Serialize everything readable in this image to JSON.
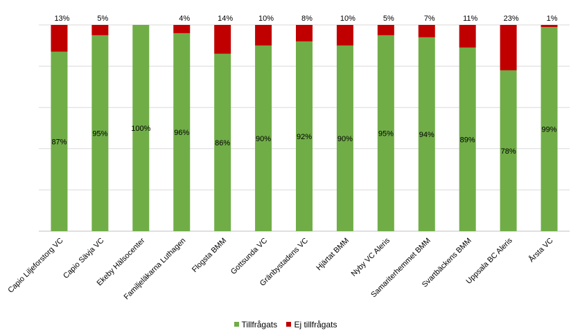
{
  "chart_data": {
    "type": "bar",
    "stacked": true,
    "categories": [
      "Capio Liljeforstorg VC",
      "Capio Sävja VC",
      "Ekeby Hälsocenter",
      "Familjeläkarna Luthagen",
      "Flogsta BMM",
      "Gottsunda  VC",
      "Gränbystadens VC",
      "Hjärtat BMM",
      "Nyby VC Aleris",
      "Samariterhemmet BMM",
      "Svartbäckens BMM",
      "Uppsala BC Aleris",
      "Årsta VC"
    ],
    "series": [
      {
        "name": "Tillfrågats",
        "color": "#70ad47",
        "values": [
          87,
          95,
          100,
          96,
          86,
          90,
          92,
          90,
          95,
          94,
          89,
          78,
          99
        ],
        "labels": [
          "87%",
          "95%",
          "100%",
          "96%",
          "86%",
          "90%",
          "92%",
          "90%",
          "95%",
          "94%",
          "89%",
          "78%",
          "99%"
        ]
      },
      {
        "name": "Ej tillfrågats",
        "color": "#c00000",
        "values": [
          13,
          5,
          0,
          4,
          14,
          10,
          8,
          10,
          5,
          7,
          11,
          23,
          1
        ],
        "labels": [
          "13%",
          "5%",
          "",
          "4%",
          "14%",
          "10%",
          "8%",
          "10%",
          "5%",
          "7%",
          "11%",
          "23%",
          "1%"
        ]
      }
    ],
    "ylim": [
      0,
      100
    ],
    "grid": true,
    "legend": "bottom",
    "xlabel": "",
    "ylabel": "",
    "title": ""
  }
}
